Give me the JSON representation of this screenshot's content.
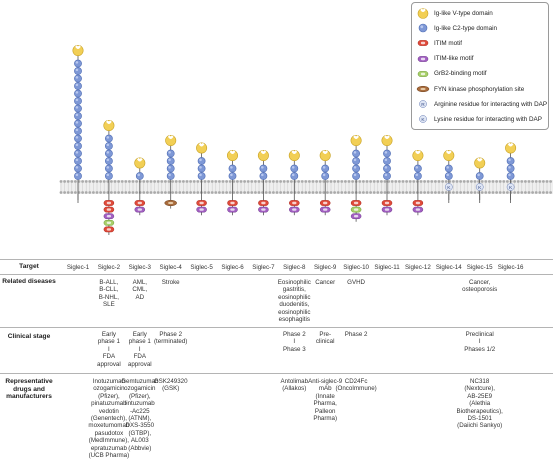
{
  "legend": {
    "items": [
      {
        "icon": "ig-v-icon",
        "label": "Ig-like V-type domain"
      },
      {
        "icon": "ig-c2-icon",
        "label": "Ig-like C2-type domain"
      },
      {
        "icon": "itim-icon",
        "label": "ITIM motif"
      },
      {
        "icon": "itim-like-icon",
        "label": "ITIM-like motif"
      },
      {
        "icon": "grb2-icon",
        "label": "GrB2-binding motif"
      },
      {
        "icon": "fyn-icon",
        "label": "FYN kinase phosphorylation site"
      },
      {
        "icon": "arginine-icon",
        "label": "Arginine residue for interacting with DAP",
        "letter": "R"
      },
      {
        "icon": "lysine-icon",
        "label": "Lysine residue for interacting with DAP",
        "letter": "K"
      }
    ]
  },
  "colors": {
    "vdomain": "#f2cf55",
    "c2domain": "#7e98d6",
    "itim": "#e04a3a",
    "itimlike": "#a25fc2",
    "grb2": "#a8cf6a",
    "fyn": "#a86b3c",
    "membrane": "#c8c8c8",
    "text": "#222222"
  },
  "siglecs": [
    {
      "name": "Siglec-1",
      "c2": 16,
      "motifs": [],
      "residue": null
    },
    {
      "name": "Siglec-2",
      "c2": 6,
      "motifs": [
        "itim",
        "itim",
        "itimlike",
        "grb2",
        "itim"
      ],
      "residue": null
    },
    {
      "name": "Siglec-3",
      "c2": 1,
      "motifs": [
        "itim",
        "itimlike"
      ],
      "residue": null
    },
    {
      "name": "Siglec-4",
      "c2": 4,
      "motifs": [
        "fyn"
      ],
      "residue": null
    },
    {
      "name": "Siglec-5",
      "c2": 3,
      "motifs": [
        "itim",
        "itimlike"
      ],
      "residue": null
    },
    {
      "name": "Siglec-6",
      "c2": 2,
      "motifs": [
        "itim",
        "itimlike"
      ],
      "residue": null
    },
    {
      "name": "Siglec-7",
      "c2": 2,
      "motifs": [
        "itim",
        "itimlike"
      ],
      "residue": null
    },
    {
      "name": "Siglec-8",
      "c2": 2,
      "motifs": [
        "itim",
        "itimlike"
      ],
      "residue": null
    },
    {
      "name": "Siglec-9",
      "c2": 2,
      "motifs": [
        "itim",
        "itimlike"
      ],
      "residue": null
    },
    {
      "name": "Siglec-10",
      "c2": 4,
      "motifs": [
        "itim",
        "grb2",
        "itimlike"
      ],
      "residue": null
    },
    {
      "name": "Siglec-11",
      "c2": 4,
      "motifs": [
        "itim",
        "itimlike"
      ],
      "residue": null
    },
    {
      "name": "Siglec-12",
      "c2": 2,
      "motifs": [
        "itim",
        "itimlike"
      ],
      "residue": null
    },
    {
      "name": "Siglec-14",
      "c2": 2,
      "motifs": [],
      "residue": "K"
    },
    {
      "name": "Siglec-15",
      "c2": 1,
      "motifs": [],
      "residue": "K"
    },
    {
      "name": "Siglec-16",
      "c2": 3,
      "motifs": [],
      "residue": "K"
    }
  ],
  "table": {
    "target_label": "Target",
    "related_label": "Related diseases",
    "clinical_label": "Clinical stage",
    "drugs_label": "Representative drugs and manufacturers",
    "related": [
      {
        "col": 1,
        "text": "B-ALL,\nB-CLL,\nB-NHL,\nSLE"
      },
      {
        "col": 2,
        "text": "AML,\nCML,\nAD"
      },
      {
        "col": 3,
        "text": "Stroke"
      },
      {
        "col": 7,
        "text": "Eosinophilic\ngastritis,\neosinophilic\nduodenitis,\neosinophilic\nesophagitis"
      },
      {
        "col": 8,
        "text": "Cancer"
      },
      {
        "col": 9,
        "text": "GVHD"
      },
      {
        "col": 13,
        "text": "Cancer,\nosteoporosis"
      }
    ],
    "clinical": [
      {
        "col": 1,
        "text": "Early\nphase 1\nI\nFDA\napproval"
      },
      {
        "col": 2,
        "text": "Early\nphase 1\nI\nFDA\napproval"
      },
      {
        "col": 3,
        "text": "Phase 2\n(terminated)"
      },
      {
        "col": 7,
        "text": "Phase 2\nI\nPhase 3"
      },
      {
        "col": 8,
        "text": "Pre-\nclinical"
      },
      {
        "col": 9,
        "text": "Phase 2"
      },
      {
        "col": 13,
        "text": "Preclinical\nI\nPhases 1/2"
      }
    ],
    "drugs": [
      {
        "col": 1,
        "text": "Inotuzumab\nozogamicin\n(Pfizer),\npinatuzumab\nvedotin\n(Genentech),\nmoxetumomab\npasudotox\n(MedImmune),\nepratuzumab\n(UCB Pharma)"
      },
      {
        "col": 2,
        "text": "Gemtuzumab\nozogamicin\n(Pfizer),\nlintuzumab\n-Ac225\n(ATNM),\nDXS-3550\n(GTBP),\nAL003\n(Abbvie)"
      },
      {
        "col": 3,
        "text": "GSK249320\n(GSK)"
      },
      {
        "col": 7,
        "text": "Antolimab\n(Allakos)"
      },
      {
        "col": 8,
        "text": "Anti-siglec-9\nmAb\n(Innate\nPharma,\nPalleon\nPharma)"
      },
      {
        "col": 9,
        "text": "CD24Fc\n(OncoImmune)"
      },
      {
        "col": 13,
        "text": "NC318\n(Nextcure),\nAB-25E9\n(Alethia\nBiotherapeutics),\nDS-1501\n(Daiichi Sankyo)"
      }
    ]
  }
}
